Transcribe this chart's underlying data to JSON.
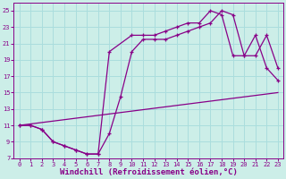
{
  "background_color": "#cceee8",
  "grid_color": "#aadddd",
  "line_color": "#880088",
  "xlabel": "Windchill (Refroidissement éolien,°C)",
  "xlabel_fontsize": 6.5,
  "xlim": [
    -0.5,
    23.5
  ],
  "ylim": [
    7,
    26
  ],
  "yticks": [
    7,
    9,
    11,
    13,
    15,
    17,
    19,
    21,
    23,
    25
  ],
  "xticks": [
    0,
    1,
    2,
    3,
    4,
    5,
    6,
    7,
    8,
    9,
    10,
    11,
    12,
    13,
    14,
    15,
    16,
    17,
    18,
    19,
    20,
    21,
    22,
    23
  ],
  "line_x": [
    0,
    23
  ],
  "line_y": [
    11,
    15
  ],
  "upper_x": [
    0,
    1,
    2,
    3,
    4,
    5,
    6,
    7,
    8,
    10,
    11,
    12,
    13,
    14,
    15,
    16,
    17,
    18,
    19,
    20,
    21,
    22,
    23
  ],
  "upper_y": [
    11,
    11,
    10.5,
    9.0,
    8.5,
    8.0,
    7.5,
    7.5,
    20.0,
    22.0,
    22.0,
    22.0,
    22.5,
    23.0,
    23.5,
    23.5,
    25.0,
    24.5,
    19.5,
    19.5,
    22.0,
    18.0,
    16.5
  ],
  "middle_x": [
    0,
    1,
    2,
    3,
    4,
    5,
    6,
    7,
    8,
    9,
    10,
    11,
    12,
    13,
    14,
    15,
    16,
    17,
    18,
    19,
    20,
    21,
    22,
    23
  ],
  "middle_y": [
    11,
    11,
    10.5,
    9.0,
    8.5,
    8.0,
    7.5,
    7.5,
    10.0,
    14.5,
    20.0,
    21.5,
    21.5,
    21.5,
    22.0,
    22.5,
    23.0,
    23.5,
    25.0,
    24.5,
    19.5,
    19.5,
    22.0,
    18.0
  ]
}
